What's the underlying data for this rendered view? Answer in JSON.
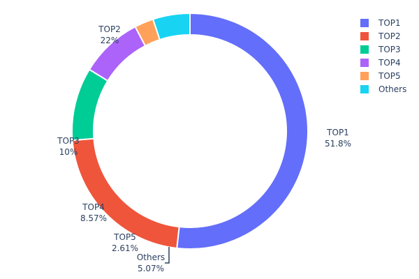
{
  "chart_data": {
    "type": "pie",
    "hole": true,
    "sort_order": "clockwise",
    "legend_position": "top-right",
    "categories": [
      "TOP1",
      "TOP2",
      "TOP3",
      "TOP4",
      "TOP5",
      "Others"
    ],
    "values": [
      51.8,
      22,
      10,
      8.57,
      2.61,
      5.07
    ],
    "percent_labels": [
      "51.8%",
      "22%",
      "10%",
      "8.57%",
      "2.61%",
      "5.07%"
    ],
    "colors": [
      "#636efa",
      "#EF553B",
      "#00cc96",
      "#ab63fa",
      "#FFA15A",
      "#19d3f3"
    ]
  }
}
